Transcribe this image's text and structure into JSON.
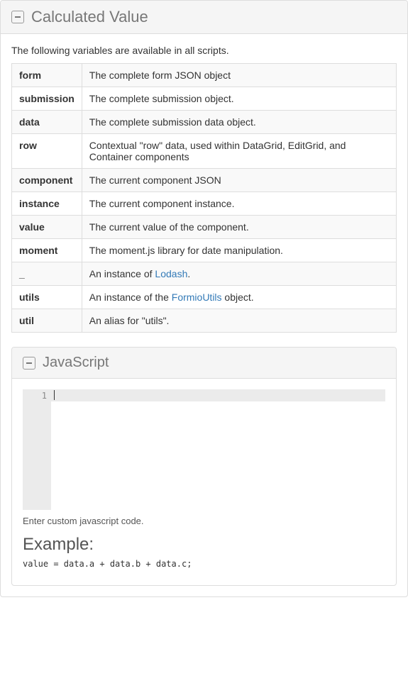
{
  "outerPanel": {
    "title": "Calculated Value",
    "intro": "The following variables are available in all scripts."
  },
  "varsTable": {
    "rows": [
      {
        "name": "form",
        "desc": "The complete form JSON object"
      },
      {
        "name": "submission",
        "desc": "The complete submission object."
      },
      {
        "name": "data",
        "desc": "The complete submission data object."
      },
      {
        "name": "row",
        "desc": "Contextual \"row\" data, used within DataGrid, EditGrid, and Container components"
      },
      {
        "name": "component",
        "desc": "The current component JSON"
      },
      {
        "name": "instance",
        "desc": "The current component instance."
      },
      {
        "name": "value",
        "desc": "The current value of the component."
      },
      {
        "name": "moment",
        "desc": "The moment.js library for date manipulation."
      },
      {
        "name": "_",
        "desc_pre": "An instance of ",
        "link": "Lodash",
        "desc_post": "."
      },
      {
        "name": "utils",
        "desc_pre": "An instance of the ",
        "link": "FormioUtils",
        "desc_post": " object."
      },
      {
        "name": "util",
        "desc": "An alias for \"utils\"."
      }
    ]
  },
  "innerPanel": {
    "title": "JavaScript",
    "lineNumber": "1",
    "hint": "Enter custom javascript code.",
    "exampleHeading": "Example:",
    "exampleCode": "value = data.a + data.b + data.c;"
  }
}
